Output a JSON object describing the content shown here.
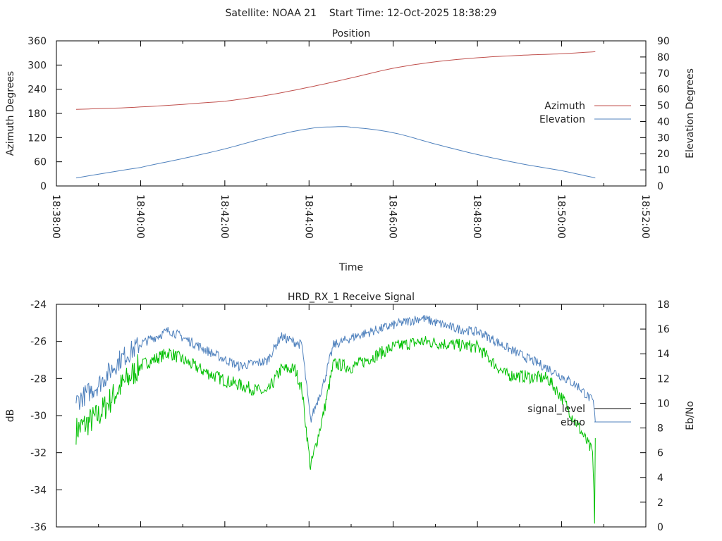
{
  "chart_data": [
    {
      "type": "line",
      "suptitle": "Satellite: NOAA 21    Start Time: 12-Oct-2025 18:38:29",
      "title": "Position",
      "xlabel": "Time",
      "ylabel": "Azimuth Degrees",
      "y2label": "Elevation Degrees",
      "xlim": [
        "18:38:00",
        "18:52:00"
      ],
      "xticks": [
        "18:38:00",
        "18:40:00",
        "18:42:00",
        "18:44:00",
        "18:46:00",
        "18:48:00",
        "18:50:00",
        "18:52:00"
      ],
      "ylim": [
        0,
        360
      ],
      "yticks": [
        0,
        60,
        120,
        180,
        240,
        300,
        360
      ],
      "y2lim": [
        0,
        90
      ],
      "y2ticks": [
        0,
        10,
        20,
        30,
        40,
        50,
        60,
        70,
        80,
        90
      ],
      "legend_position": "right",
      "series": [
        {
          "name": "Azimuth",
          "axis": "y",
          "color": "#c0504d",
          "points": [
            [
              "18:38:28",
              190
            ],
            [
              "18:40:00",
              196
            ],
            [
              "18:42:00",
              210
            ],
            [
              "18:43:00",
              225
            ],
            [
              "18:44:00",
              245
            ],
            [
              "18:45:00",
              268
            ],
            [
              "18:46:00",
              292
            ],
            [
              "18:47:00",
              308
            ],
            [
              "18:48:00",
              318
            ],
            [
              "18:49:00",
              324
            ],
            [
              "18:50:00",
              328
            ],
            [
              "18:50:48",
              333
            ]
          ]
        },
        {
          "name": "Elevation",
          "axis": "y2",
          "color": "#4f81bd",
          "points": [
            [
              "18:38:28",
              5
            ],
            [
              "18:40:00",
              11.5
            ],
            [
              "18:41:00",
              17
            ],
            [
              "18:42:00",
              23
            ],
            [
              "18:43:00",
              30
            ],
            [
              "18:44:00",
              35.5
            ],
            [
              "18:44:37",
              36.7
            ],
            [
              "18:45:00",
              36.4
            ],
            [
              "18:46:00",
              33
            ],
            [
              "18:47:00",
              26
            ],
            [
              "18:48:00",
              19.5
            ],
            [
              "18:49:00",
              14
            ],
            [
              "18:50:00",
              9.5
            ],
            [
              "18:50:48",
              5
            ]
          ]
        }
      ]
    },
    {
      "type": "line",
      "title": "HRD_RX_1 Receive Signal",
      "ylabel": "dB",
      "y2label": "Eb/No",
      "xlim": [
        "18:38:00",
        "18:52:00"
      ],
      "ylim": [
        -36,
        -24
      ],
      "yticks": [
        -36,
        -34,
        -32,
        -30,
        -28,
        -26,
        -24
      ],
      "y2lim": [
        0,
        18
      ],
      "y2ticks": [
        0,
        2,
        4,
        6,
        8,
        10,
        12,
        14,
        16,
        18
      ],
      "legend_position": "right",
      "series": [
        {
          "name": "signal_level",
          "axis": "y",
          "color": "#00c000",
          "legend_color": "#000000",
          "noise": 0.35,
          "points": [
            [
              "18:38:28",
              -30.8
            ],
            [
              "18:39:00",
              -30
            ],
            [
              "18:39:30",
              -28.5
            ],
            [
              "18:40:00",
              -27.3
            ],
            [
              "18:40:41",
              -26.6
            ],
            [
              "18:41:30",
              -27.6
            ],
            [
              "18:42:00",
              -28.1
            ],
            [
              "18:43:00",
              -28.8
            ],
            [
              "18:43:20",
              -27.5
            ],
            [
              "18:43:40",
              -27.5
            ],
            [
              "18:43:50",
              -28.6
            ],
            [
              "18:44:02",
              -32.8
            ],
            [
              "18:44:20",
              -30
            ],
            [
              "18:44:35",
              -27.2
            ],
            [
              "18:45:00",
              -27.4
            ],
            [
              "18:46:00",
              -26.3
            ],
            [
              "18:46:40",
              -26
            ],
            [
              "18:48:00",
              -26.3
            ],
            [
              "18:48:40",
              -27.8
            ],
            [
              "18:49:40",
              -28
            ],
            [
              "18:50:00",
              -29
            ],
            [
              "18:50:30",
              -31
            ],
            [
              "18:50:44",
              -32
            ],
            [
              "18:50:47",
              -35.6
            ],
            [
              "18:50:48",
              -31.2
            ]
          ]
        },
        {
          "name": "ebno",
          "axis": "y2",
          "color": "#4f81bd",
          "legend_color": "#4f81bd",
          "noise": 0.3,
          "points": [
            [
              "18:38:28",
              10.1
            ],
            [
              "18:39:00",
              11.5
            ],
            [
              "18:39:30",
              13.5
            ],
            [
              "18:40:00",
              14.8
            ],
            [
              "18:40:41",
              15.9
            ],
            [
              "18:41:40",
              14.1
            ],
            [
              "18:42:20",
              13
            ],
            [
              "18:43:00",
              13.4
            ],
            [
              "18:43:20",
              15.4
            ],
            [
              "18:43:50",
              14.7
            ],
            [
              "18:44:02",
              8.6
            ],
            [
              "18:44:20",
              11.5
            ],
            [
              "18:44:35",
              14.7
            ],
            [
              "18:45:05",
              15.4
            ],
            [
              "18:46:05",
              16.4
            ],
            [
              "18:46:40",
              16.9
            ],
            [
              "18:47:25",
              16.1
            ],
            [
              "18:48:05",
              15.7
            ],
            [
              "18:48:45",
              14.4
            ],
            [
              "18:49:45",
              12.7
            ],
            [
              "18:50:25",
              11.3
            ],
            [
              "18:50:45",
              10.1
            ],
            [
              "18:50:48",
              8.5
            ]
          ]
        }
      ]
    }
  ]
}
